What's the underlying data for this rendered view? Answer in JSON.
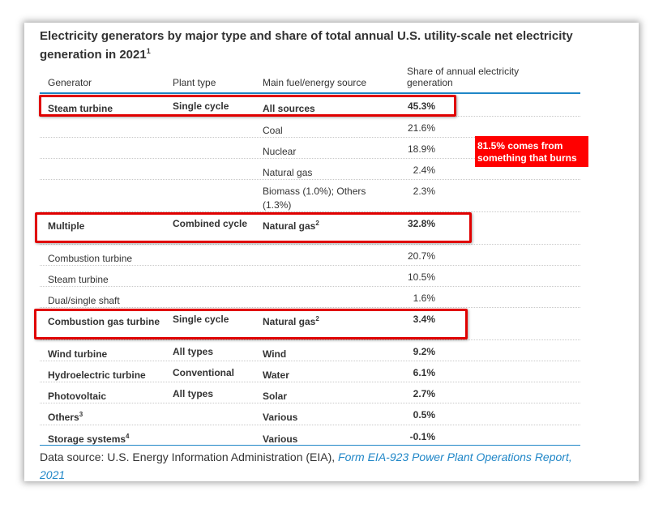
{
  "title": {
    "text": "Electricity generators by major type and share of total annual U.S. utility-scale net electricity generation in 2021",
    "footnote": "1"
  },
  "columns": {
    "generator": "Generator",
    "plant_type": "Plant type",
    "fuel": "Main fuel/energy source",
    "share": "Share of annual electricity generation"
  },
  "rows": [
    {
      "generator": "Steam turbine",
      "gen_note": "",
      "plant": "Single cycle",
      "fuel": "All sources",
      "fuel_note": "",
      "share": "45.3%",
      "bold": true
    },
    {
      "generator": "",
      "gen_note": "",
      "plant": "",
      "fuel": "Coal",
      "fuel_note": "",
      "share": "21.6%",
      "bold": false
    },
    {
      "generator": "",
      "gen_note": "",
      "plant": "",
      "fuel": "Nuclear",
      "fuel_note": "",
      "share": "18.9%",
      "bold": false
    },
    {
      "generator": "",
      "gen_note": "",
      "plant": "",
      "fuel": "Natural gas",
      "fuel_note": "",
      "share": "2.4%",
      "bold": false
    },
    {
      "generator": "",
      "gen_note": "",
      "plant": "",
      "fuel": "Biomass (1.0%); Others (1.3%)",
      "fuel_note": "",
      "share": "2.3%",
      "bold": false
    },
    {
      "generator": "Multiple",
      "gen_note": "",
      "plant": "Combined cycle",
      "fuel": "Natural gas",
      "fuel_note": "2",
      "share": "32.8%",
      "bold": true
    },
    {
      "generator": "Combustion turbine",
      "gen_note": "",
      "plant": "",
      "fuel": "",
      "fuel_note": "",
      "share": "20.7%",
      "bold": false
    },
    {
      "generator": "Steam turbine",
      "gen_note": "",
      "plant": "",
      "fuel": "",
      "fuel_note": "",
      "share": "10.5%",
      "bold": false
    },
    {
      "generator": "Dual/single shaft",
      "gen_note": "",
      "plant": "",
      "fuel": "",
      "fuel_note": "",
      "share": "1.6%",
      "bold": false
    },
    {
      "generator": "Combustion gas turbine",
      "gen_note": "",
      "plant": "Single cycle",
      "fuel": "Natural gas",
      "fuel_note": "2",
      "share": "3.4%",
      "bold": true
    },
    {
      "generator": "Wind turbine",
      "gen_note": "",
      "plant": "All types",
      "fuel": "Wind",
      "fuel_note": "",
      "share": "9.2%",
      "bold": true
    },
    {
      "generator": "Hydroelectric turbine",
      "gen_note": "",
      "plant": "Conventional",
      "fuel": "Water",
      "fuel_note": "",
      "share": "6.1%",
      "bold": true
    },
    {
      "generator": "Photovoltaic",
      "gen_note": "",
      "plant": "All types",
      "fuel": "Solar",
      "fuel_note": "",
      "share": "2.7%",
      "bold": true
    },
    {
      "generator": "Others",
      "gen_note": "3",
      "plant": "",
      "fuel": "Various",
      "fuel_note": "",
      "share": "0.5%",
      "bold": true
    },
    {
      "generator": "Storage systems",
      "gen_note": "4",
      "plant": "",
      "fuel": "Various",
      "fuel_note": "",
      "share": "-0.1%",
      "bold": true
    }
  ],
  "callout": "81.5% comes from something that burns",
  "highlight_color": "#e00000",
  "accent_color": "#1f86c7",
  "source": {
    "prefix": "Data source: U.S. Energy Information Administration (EIA), ",
    "link_text": "Form EIA-923 Power Plant Operations Report, 2021"
  }
}
